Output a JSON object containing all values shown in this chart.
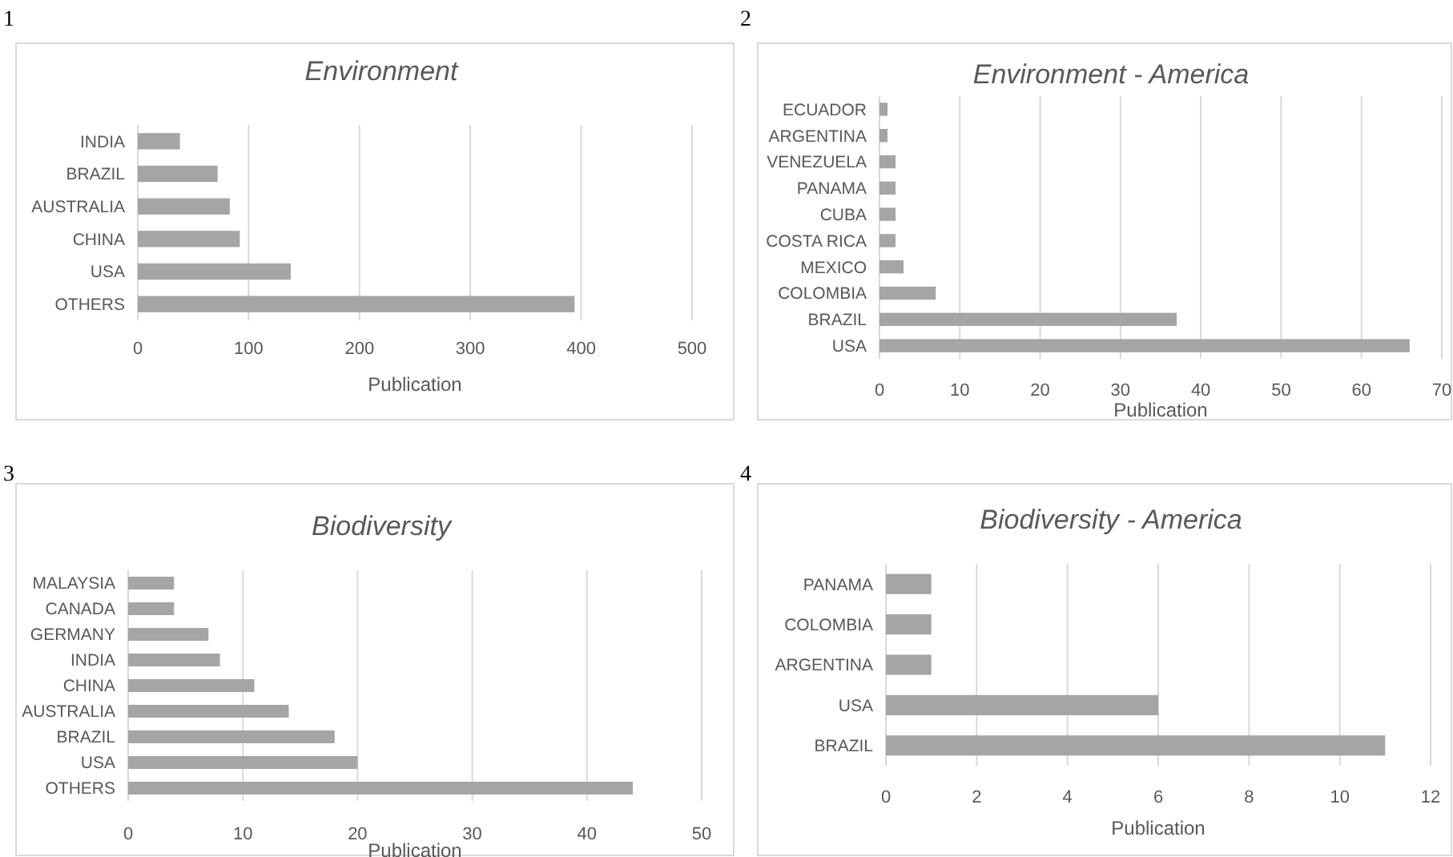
{
  "chart_data": [
    {
      "type": "bar",
      "orientation": "horizontal",
      "title": "Environment",
      "xlabel": "Publication",
      "annotations": [
        "1"
      ],
      "categories": [
        "INDIA",
        "BRAZIL",
        "AUSTRALIA",
        "CHINA",
        "USA",
        "OTHERS"
      ],
      "values": [
        38,
        72,
        83,
        92,
        138,
        394
      ],
      "color": "#a5a5a5",
      "xlim": [
        0,
        500
      ],
      "xticks": [
        0,
        100,
        200,
        300,
        400,
        500
      ],
      "grid": "x"
    },
    {
      "type": "bar",
      "orientation": "horizontal",
      "title": "Environment - America",
      "xlabel": "Publication",
      "annotations": [
        "2"
      ],
      "categories": [
        "ECUADOR",
        "ARGENTINA",
        "VENEZUELA",
        "PANAMA",
        "CUBA",
        "COSTA RICA",
        "MEXICO",
        "COLOMBIA",
        "BRAZIL",
        "USA"
      ],
      "values": [
        1,
        1,
        2,
        2,
        2,
        2,
        3,
        7,
        37,
        66
      ],
      "color": "#a5a5a5",
      "xlim": [
        0,
        70
      ],
      "xticks": [
        0,
        10,
        20,
        30,
        40,
        50,
        60,
        70
      ],
      "grid": "x"
    },
    {
      "type": "bar",
      "orientation": "horizontal",
      "title": "Biodiversity",
      "xlabel": "Publication",
      "annotations": [
        "3"
      ],
      "categories": [
        "MALAYSIA",
        "CANADA",
        "GERMANY",
        "INDIA",
        "CHINA",
        "AUSTRALIA",
        "BRAZIL",
        "USA",
        "OTHERS"
      ],
      "values": [
        4,
        4,
        7,
        8,
        11,
        14,
        18,
        20,
        44
      ],
      "color": "#a5a5a5",
      "xlim": [
        0,
        50
      ],
      "xticks": [
        0,
        10,
        20,
        30,
        40,
        50
      ],
      "grid": "x"
    },
    {
      "type": "bar",
      "orientation": "horizontal",
      "title": "Biodiversity - America",
      "xlabel": "Publication",
      "annotations": [
        "4"
      ],
      "categories": [
        "PANAMA",
        "COLOMBIA",
        "ARGENTINA",
        "USA",
        "BRAZIL"
      ],
      "values": [
        1,
        1,
        1,
        6,
        11
      ],
      "color": "#a5a5a5",
      "xlim": [
        0,
        12
      ],
      "xticks": [
        0,
        2,
        4,
        6,
        8,
        10,
        12
      ],
      "grid": "x"
    }
  ]
}
